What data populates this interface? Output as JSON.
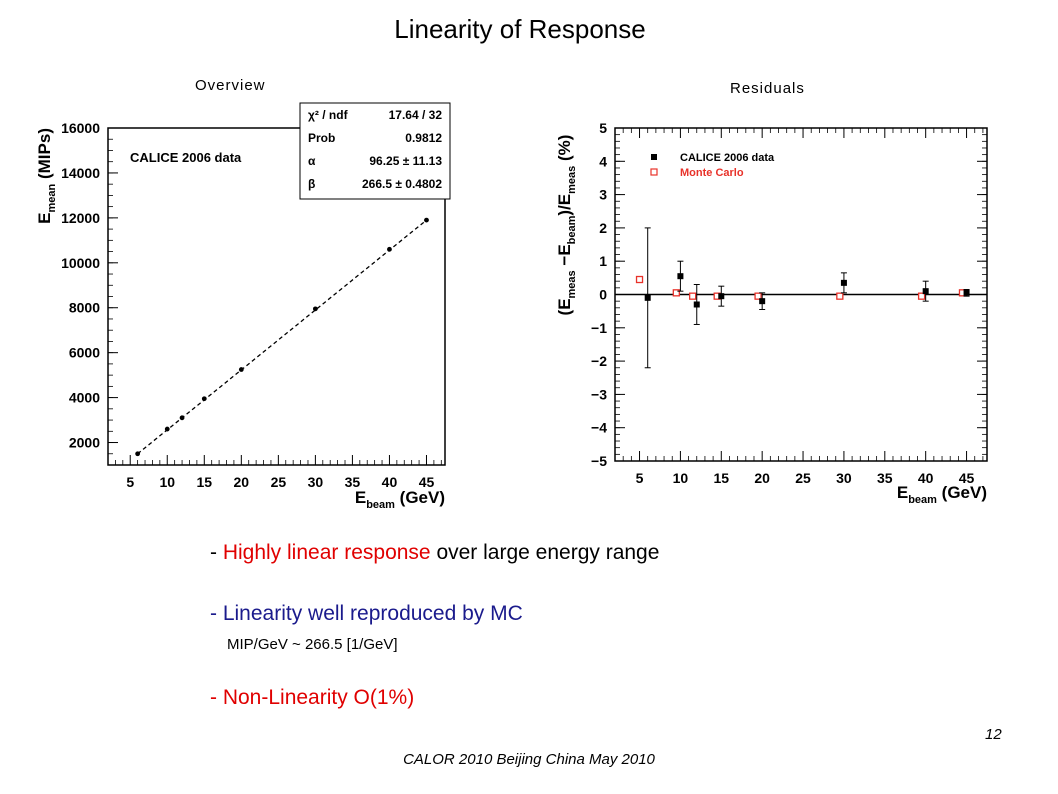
{
  "slide": {
    "title": "Linearity of Response",
    "overview_label": "Overview",
    "residuals_label": "Residuals",
    "bullets": [
      {
        "dash": "- ",
        "highlight": "Highly linear response",
        "rest": " over large energy range"
      },
      {
        "dash": "- ",
        "text": "Linearity well reproduced by MC",
        "sub": "MIP/GeV ~ 266.5 [1/GeV]"
      },
      {
        "text": "- Non-Linearity O(1%)"
      }
    ],
    "footer": "CALOR 2010 Beijing China May 2010",
    "page_number": "12"
  },
  "colors": {
    "red": "#e00000",
    "navy": "#1a1a8c",
    "mc": "#e8322a"
  },
  "chart_data": [
    {
      "type": "scatter",
      "title": "",
      "xlabel": "E",
      "xlabel_sub": "beam",
      "xlabel_unit": " (GeV)",
      "ylabel": "E",
      "ylabel_sub": "mean",
      "ylabel_unit": " (MIPs)",
      "xlim": [
        2,
        47.5
      ],
      "ylim": [
        1000,
        16000
      ],
      "xticks": [
        5,
        10,
        15,
        20,
        25,
        30,
        35,
        40,
        45
      ],
      "yticks": [
        2000,
        4000,
        6000,
        8000,
        10000,
        12000,
        14000,
        16000
      ],
      "annotation": "CALICE 2006 data",
      "grid": false,
      "series": [
        {
          "name": "CALICE 2006 data",
          "x": [
            6,
            10,
            12,
            15,
            20,
            30,
            40,
            45
          ],
          "y": [
            1500,
            2600,
            3100,
            3950,
            5250,
            7950,
            10600,
            11900
          ]
        }
      ],
      "fit_line": {
        "x": [
          6,
          45
        ],
        "y": [
          1500,
          11900
        ]
      },
      "fit_box": [
        {
          "label": "χ² / ndf",
          "value": "17.64 / 32"
        },
        {
          "label": "Prob",
          "value": "0.9812"
        },
        {
          "label": "α",
          "value": "96.25 ± 11.13"
        },
        {
          "label": "β",
          "value": "266.5 ± 0.4802"
        }
      ]
    },
    {
      "type": "scatter",
      "title": "",
      "xlabel": "E",
      "xlabel_sub": "beam",
      "xlabel_unit": " (GeV)",
      "ylabel": "(E",
      "ylabel_sub1": "meas",
      "ylabel_mid": " −E",
      "ylabel_sub2": "beam",
      "ylabel_mid2": ")/E",
      "ylabel_sub3": "meas",
      "ylabel_unit": " (%)",
      "xlim": [
        2,
        47.5
      ],
      "ylim": [
        -5,
        5
      ],
      "xticks": [
        5,
        10,
        15,
        20,
        25,
        30,
        35,
        40,
        45
      ],
      "yticks": [
        -5,
        -4,
        -3,
        -2,
        -1,
        0,
        1,
        2,
        3,
        4,
        5
      ],
      "grid": false,
      "legend_position": "top-left",
      "series": [
        {
          "name": "CALICE 2006 data",
          "marker": "filled-square",
          "x": [
            6,
            10,
            12,
            15,
            20,
            30,
            40,
            45
          ],
          "y": [
            -0.1,
            0.55,
            -0.3,
            -0.05,
            -0.2,
            0.35,
            0.1,
            0.05
          ],
          "err": [
            2.1,
            0.45,
            0.6,
            0.3,
            0.25,
            0.3,
            0.3,
            0.1
          ]
        },
        {
          "name": "Monte Carlo",
          "marker": "open-square",
          "x": [
            5,
            9.5,
            11.5,
            14.5,
            19.5,
            29.5,
            39.5,
            44.5
          ],
          "y": [
            0.45,
            0.05,
            -0.05,
            -0.05,
            -0.05,
            -0.05,
            -0.05,
            0.05
          ],
          "err": [
            0.1,
            0.05,
            0.05,
            0.05,
            0.05,
            0.05,
            0.05,
            0.05
          ]
        }
      ]
    }
  ]
}
